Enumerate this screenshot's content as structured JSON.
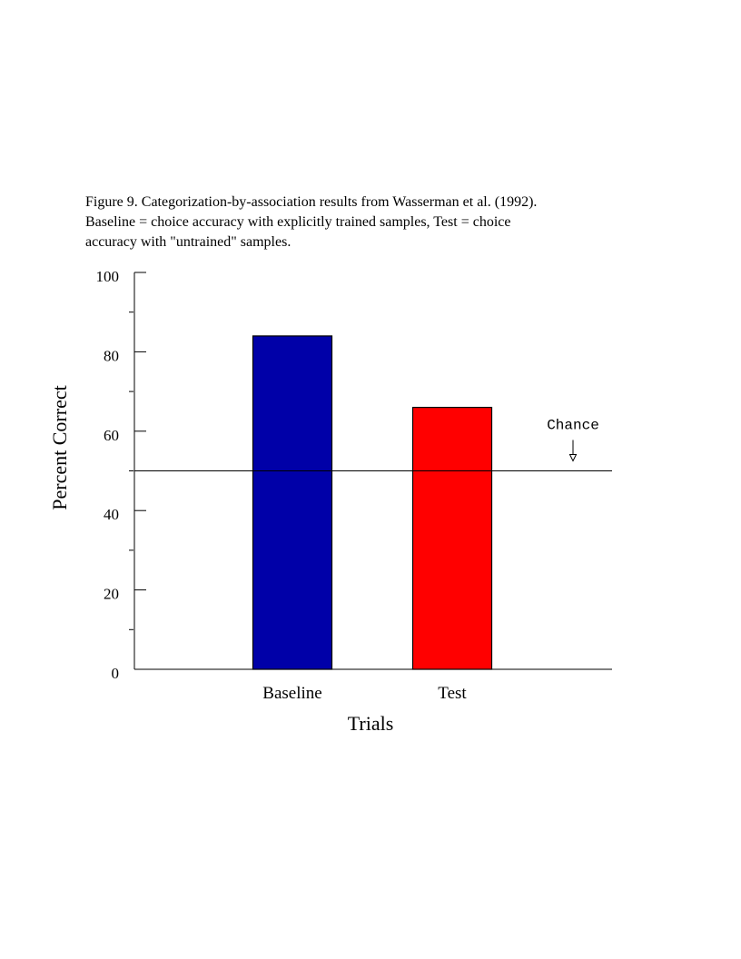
{
  "caption": {
    "line1": "Figure 9. Categorization-by-association results from Wasserman et al. (1992).",
    "line2": "Baseline = choice accuracy with explicitly trained samples, Test = choice",
    "line3": "accuracy with \"untrained\" samples."
  },
  "chart_data": {
    "type": "bar",
    "title": "",
    "xlabel": "Trials",
    "ylabel": "Percent Correct",
    "categories": [
      "Baseline",
      "Test"
    ],
    "values": [
      84,
      66
    ],
    "bar_colors": [
      "#0000a8",
      "#ff0000"
    ],
    "ylim": [
      0,
      100
    ],
    "yticks": [
      0,
      20,
      40,
      60,
      80,
      100
    ],
    "minor_yticks": [
      10,
      30,
      50,
      70,
      90
    ],
    "grid": false,
    "legend": "none",
    "reference_line": {
      "value": 50,
      "label": "Chance",
      "color": "#000000"
    }
  }
}
